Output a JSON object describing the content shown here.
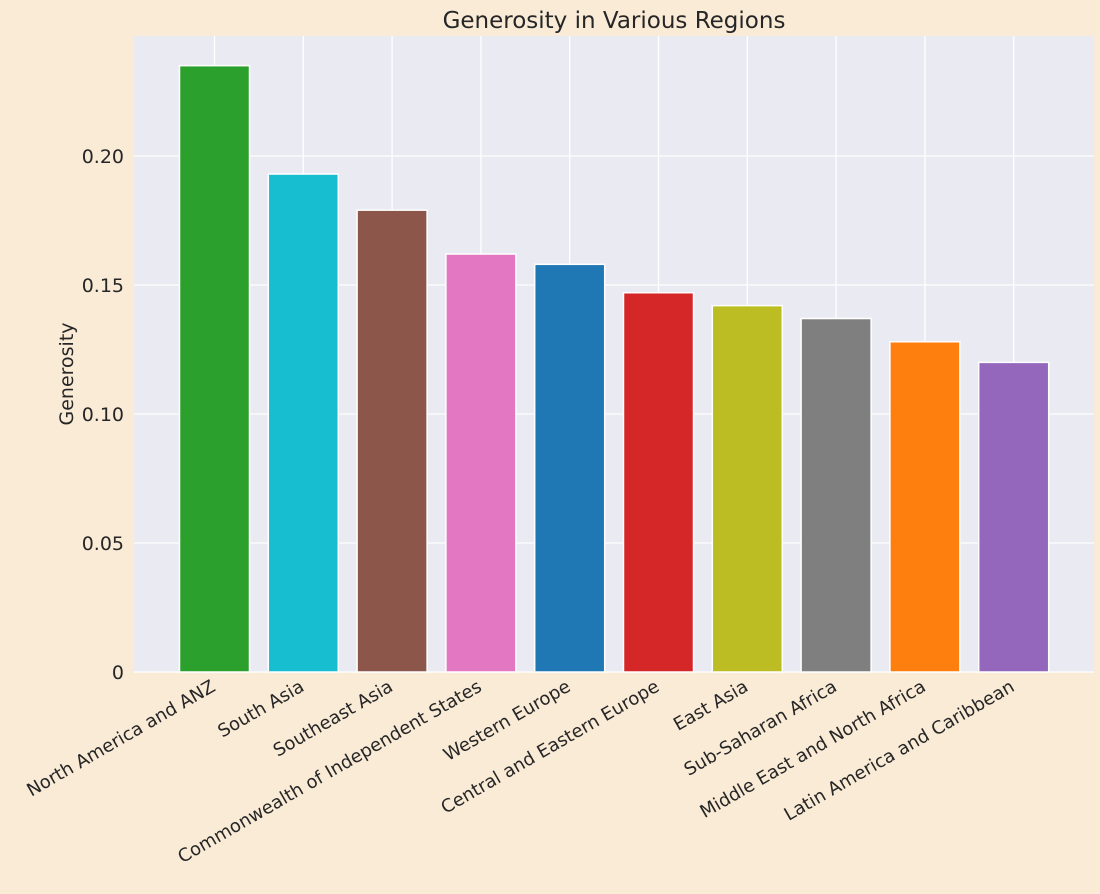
{
  "colors": {
    "page_background": "#faebd7",
    "plot_background": "#eaeaf2",
    "grid": "#ffffff",
    "text": "#262626"
  },
  "chart_data": {
    "type": "bar",
    "title": "Generosity in Various Regions",
    "xlabel": "",
    "ylabel": "Generosity",
    "ylim": [
      0,
      0.2465
    ],
    "grid": true,
    "yticks": [
      0,
      0.05,
      0.1,
      0.15,
      0.2
    ],
    "ytick_labels": [
      "0",
      "0.05",
      "0.10",
      "0.15",
      "0.20"
    ],
    "categories": [
      "North America and ANZ",
      "South Asia",
      "Southeast Asia",
      "Commonwealth of Independent States",
      "Western Europe",
      "Central and Eastern Europe",
      "East Asia",
      "Sub-Saharan Africa",
      "Middle East and North Africa",
      "Latin America and Caribbean"
    ],
    "values": [
      0.235,
      0.193,
      0.179,
      0.162,
      0.158,
      0.147,
      0.142,
      0.137,
      0.128,
      0.12
    ],
    "bar_colors": [
      "#2ca02c",
      "#17becf",
      "#8c564b",
      "#e377c2",
      "#1f77b4",
      "#d62728",
      "#bcbd22",
      "#7f7f7f",
      "#ff7f0e",
      "#9467bd"
    ]
  }
}
